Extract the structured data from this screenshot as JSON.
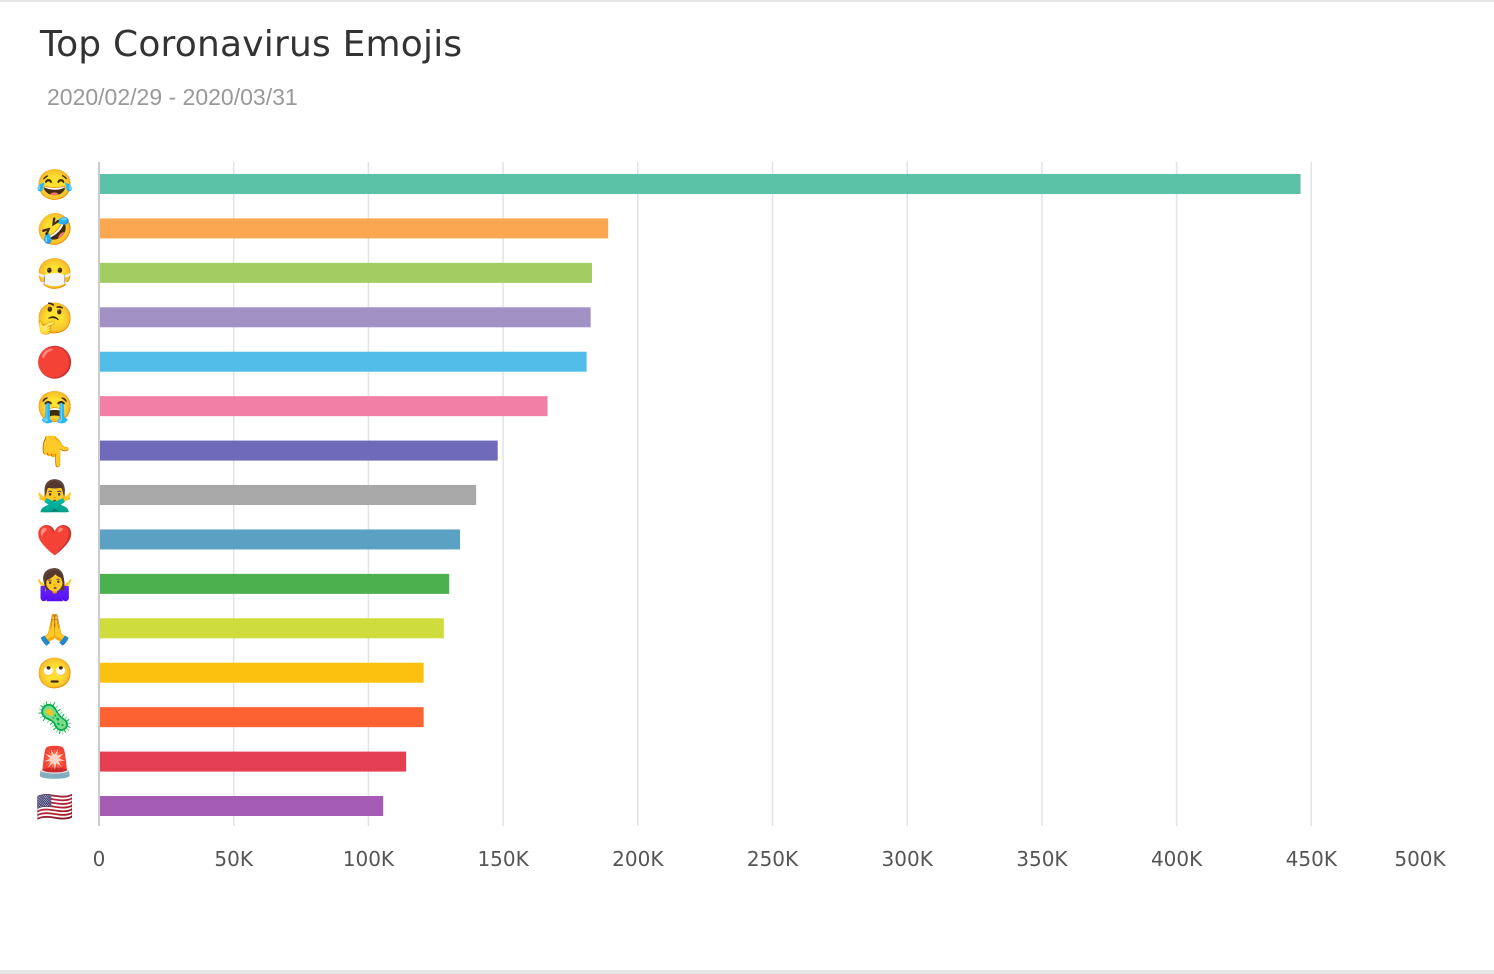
{
  "header": {
    "title": "Top Coronavirus Emojis",
    "subtitle": "2020/02/29 - 2020/03/31"
  },
  "chart_data": {
    "type": "bar",
    "orientation": "horizontal",
    "title": "Top Coronavirus Emojis",
    "subtitle": "2020/02/29 - 2020/03/31",
    "xlabel": "",
    "ylabel": "",
    "xlim": [
      0,
      500000
    ],
    "x_ticks": [
      0,
      50000,
      100000,
      150000,
      200000,
      250000,
      300000,
      350000,
      400000,
      450000,
      500000
    ],
    "x_tick_labels": [
      "0",
      "50K",
      "100K",
      "150K",
      "200K",
      "250K",
      "300K",
      "350K",
      "400K",
      "450K",
      "500K"
    ],
    "grid": true,
    "legend": "none",
    "categories": [
      {
        "emoji": "😂",
        "icon": "face-with-tears-of-joy-icon",
        "value": 446000,
        "color": "#5bc2a7"
      },
      {
        "emoji": "🤣",
        "icon": "rolling-on-floor-laughing-icon",
        "value": 189000,
        "color": "#fba651"
      },
      {
        "emoji": "😷",
        "icon": "face-with-medical-mask-icon",
        "value": 183000,
        "color": "#a2cd62"
      },
      {
        "emoji": "🤔",
        "icon": "thinking-face-icon",
        "value": 182500,
        "color": "#a291c4"
      },
      {
        "emoji": "🔴",
        "icon": "red-circle-icon",
        "value": 181000,
        "color": "#51bde8"
      },
      {
        "emoji": "😭",
        "icon": "loudly-crying-face-icon",
        "value": 166500,
        "color": "#f27fa6"
      },
      {
        "emoji": "👇",
        "icon": "pointing-down-icon",
        "value": 148000,
        "color": "#6f6bba"
      },
      {
        "emoji": "🙅‍♂️",
        "icon": "man-gesturing-no-icon",
        "value": 140000,
        "color": "#a8a8a8"
      },
      {
        "emoji": "❤️",
        "icon": "red-heart-icon",
        "value": 134000,
        "color": "#5ba1c4"
      },
      {
        "emoji": "🤷‍♀️",
        "icon": "woman-shrugging-icon",
        "value": 130000,
        "color": "#4cb04f"
      },
      {
        "emoji": "🙏",
        "icon": "folded-hands-icon",
        "value": 128000,
        "color": "#cedc3c"
      },
      {
        "emoji": "🙄",
        "icon": "face-with-rolling-eyes-icon",
        "value": 120500,
        "color": "#fcc10f"
      },
      {
        "emoji": "🦠",
        "icon": "microbe-icon",
        "value": 120500,
        "color": "#fc6232"
      },
      {
        "emoji": "🚨",
        "icon": "police-light-icon",
        "value": 114000,
        "color": "#e43e52"
      },
      {
        "emoji": "🇺🇸",
        "icon": "us-flag-icon",
        "value": 105500,
        "color": "#a45bb4"
      }
    ]
  }
}
